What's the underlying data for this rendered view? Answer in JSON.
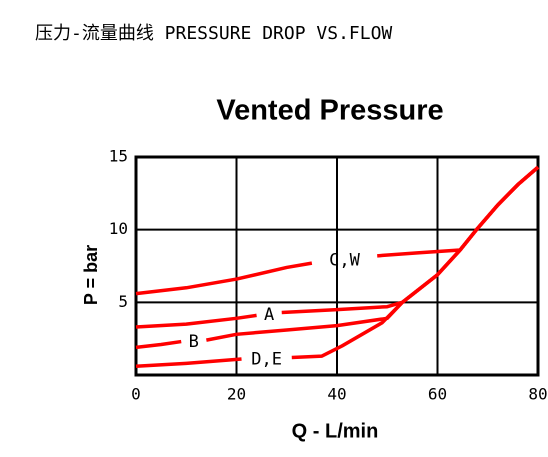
{
  "chart_data": {
    "type": "line",
    "header": "压力-流量曲线 PRESSURE DROP VS.FLOW",
    "title": "Vented Pressure",
    "x_label": "Q - L/min",
    "y_label": "P = bar",
    "xlim": [
      0,
      80
    ],
    "ylim": [
      0,
      15
    ],
    "xticks": [
      0,
      20,
      40,
      60,
      80
    ],
    "yticks": [
      5,
      10,
      15
    ],
    "grid": true,
    "series": [
      {
        "name": "C,W",
        "color": "#ff0000",
        "x": [
          0,
          10,
          20,
          30,
          35,
          40,
          48,
          56,
          64.5,
          68,
          72,
          76,
          80
        ],
        "values": [
          5.6,
          6.0,
          6.6,
          7.4,
          7.7,
          null,
          8.2,
          8.4,
          8.6,
          10.1,
          11.7,
          13.1,
          14.3
        ]
      },
      {
        "name": "A",
        "color": "#ff0000",
        "x": [
          0,
          10,
          20,
          24,
          26,
          29,
          40,
          50,
          53,
          60,
          64.5,
          68,
          72,
          76,
          80
        ],
        "values": [
          3.3,
          3.5,
          3.9,
          4.1,
          null,
          4.3,
          4.5,
          4.7,
          5.0,
          6.9,
          8.6,
          10.1,
          11.7,
          13.1,
          14.3
        ]
      },
      {
        "name": "B",
        "color": "#ff0000",
        "x": [
          0,
          5,
          9,
          11,
          14,
          20,
          30,
          40,
          50,
          53,
          60,
          64.5,
          68,
          72,
          76,
          80
        ],
        "values": [
          1.9,
          2.1,
          2.3,
          null,
          2.4,
          2.8,
          3.1,
          3.4,
          3.9,
          5.0,
          6.9,
          8.6,
          10.1,
          11.7,
          13.1,
          14.3
        ]
      },
      {
        "name": "D,E",
        "color": "#ff0000",
        "x": [
          0,
          10,
          21,
          26,
          31,
          37,
          41,
          45,
          49,
          53,
          60,
          64.5,
          68,
          72,
          76,
          80
        ],
        "values": [
          0.6,
          0.8,
          1.1,
          null,
          1.2,
          1.3,
          2.0,
          2.8,
          3.6,
          5.0,
          6.9,
          8.6,
          10.1,
          11.7,
          13.1,
          14.3
        ]
      }
    ]
  }
}
